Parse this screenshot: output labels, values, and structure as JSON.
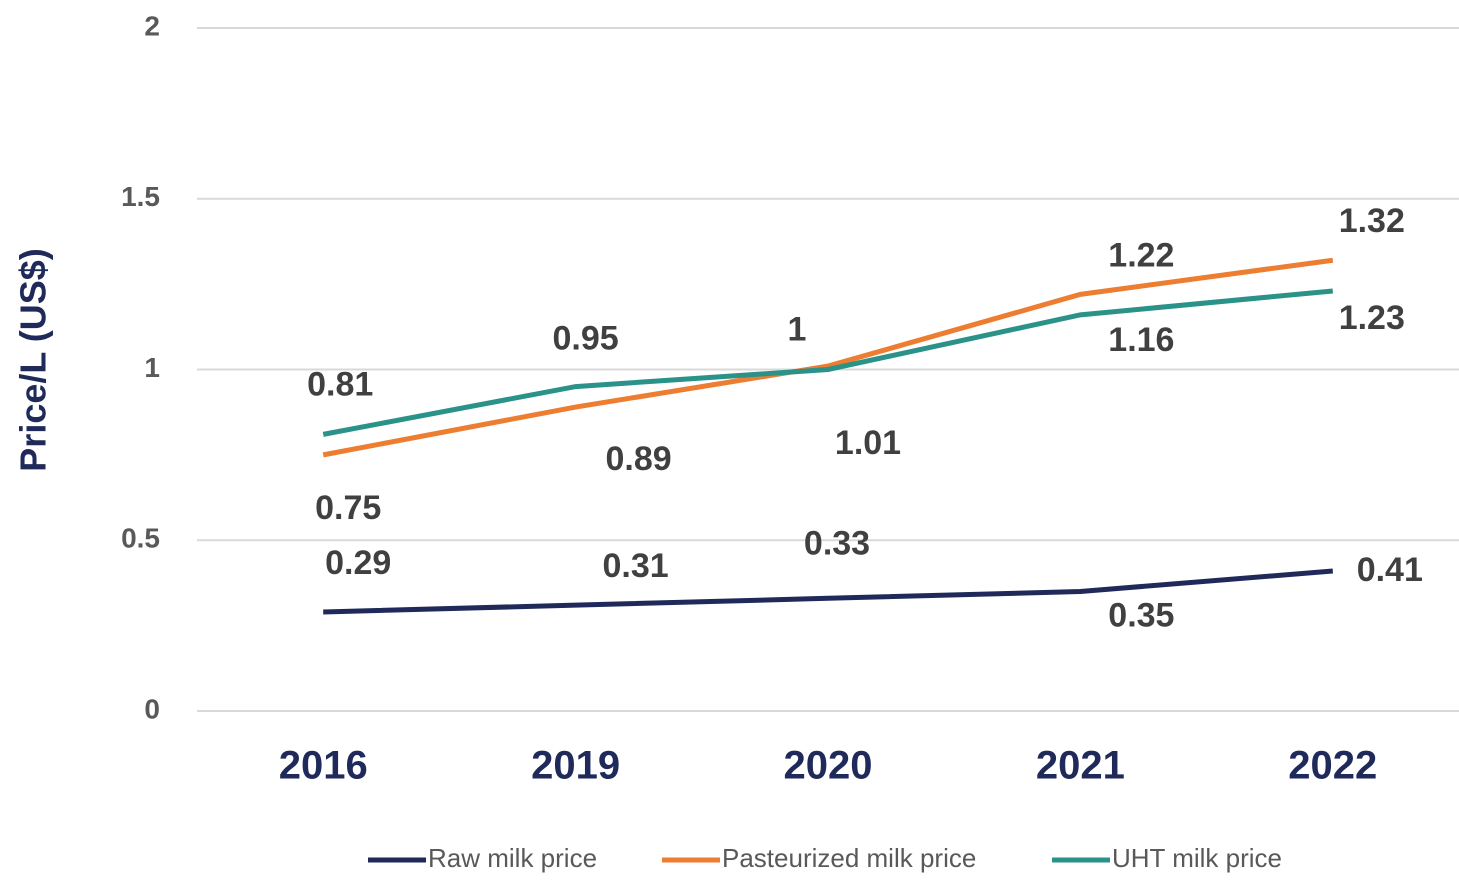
{
  "chart_data": {
    "type": "line",
    "y_label": "Price/L (US$)",
    "categories": [
      "2016",
      "2019",
      "2020",
      "2021",
      "2022"
    ],
    "series": [
      {
        "name": "Raw milk price",
        "color": "#1f2a5a",
        "values": [
          0.29,
          0.31,
          0.33,
          0.35,
          0.41
        ]
      },
      {
        "name": "Pasteurized milk price",
        "color": "#ed7d31",
        "values": [
          0.75,
          0.89,
          1.01,
          1.22,
          1.32
        ]
      },
      {
        "name": "UHT milk price",
        "color": "#2a9288",
        "values": [
          0.81,
          0.95,
          1,
          1.16,
          1.23
        ]
      }
    ],
    "ylim": [
      0,
      2
    ],
    "yticks": [
      0,
      0.5,
      1,
      1.5,
      2
    ],
    "grid": true,
    "legend": "bottom"
  }
}
